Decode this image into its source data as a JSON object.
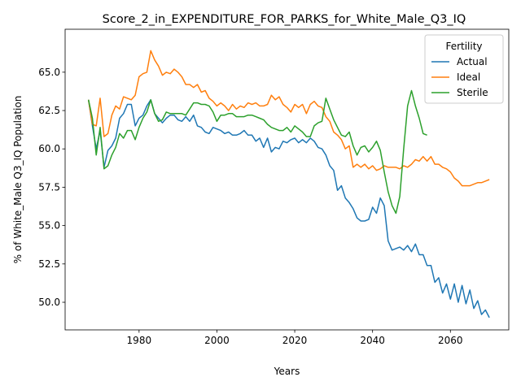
{
  "chart_data": {
    "type": "line",
    "title": "Score_2_in_EXPENDITURE_FOR_PARKS_for_White_Male_Q3_IQ",
    "xlabel": "Years",
    "ylabel": "% of White_Male Q3_IQ Population",
    "xlim": [
      1961,
      2075
    ],
    "ylim": [
      48.2,
      67.8
    ],
    "xticks": [
      1980,
      2000,
      2020,
      2040,
      2060
    ],
    "xtick_labels": [
      "1980",
      "2000",
      "2020",
      "2040",
      "2060"
    ],
    "yticks": [
      50.0,
      52.5,
      55.0,
      57.5,
      60.0,
      62.5,
      65.0
    ],
    "ytick_labels": [
      "50.0",
      "52.5",
      "55.0",
      "57.5",
      "60.0",
      "62.5",
      "65.0"
    ],
    "grid": false,
    "legend": {
      "title": "Fertility",
      "position": "top-right"
    },
    "series": [
      {
        "name": "Actual",
        "color": "#1f77b4",
        "x": [
          1967,
          1968,
          1969,
          1970,
          1971,
          1972,
          1973,
          1974,
          1975,
          1976,
          1977,
          1978,
          1979,
          1980,
          1981,
          1982,
          1983,
          1984,
          1985,
          1986,
          1987,
          1988,
          1989,
          1990,
          1991,
          1992,
          1993,
          1994,
          1995,
          1996,
          1997,
          1998,
          1999,
          2000,
          2001,
          2002,
          2003,
          2004,
          2005,
          2006,
          2007,
          2008,
          2009,
          2010,
          2011,
          2012,
          2013,
          2014,
          2015,
          2016,
          2017,
          2018,
          2019,
          2020,
          2021,
          2022,
          2023,
          2024,
          2025,
          2026,
          2027,
          2028,
          2029,
          2030,
          2031,
          2032,
          2033,
          2034,
          2035,
          2036,
          2037,
          2038,
          2039,
          2040,
          2041,
          2042,
          2043,
          2044,
          2045,
          2046,
          2047,
          2048,
          2049,
          2050,
          2051,
          2052,
          2053,
          2054,
          2055,
          2056,
          2057,
          2058,
          2059,
          2060,
          2061,
          2062,
          2063,
          2064,
          2065,
          2066,
          2067,
          2068,
          2069,
          2070
        ],
        "y": [
          63.2,
          61.5,
          60.0,
          61.2,
          58.8,
          59.9,
          60.2,
          60.7,
          62.0,
          62.3,
          62.9,
          62.9,
          61.5,
          62.0,
          62.2,
          62.8,
          63.2,
          62.3,
          62.0,
          61.7,
          62.0,
          62.2,
          62.2,
          61.9,
          61.8,
          62.1,
          61.8,
          62.2,
          61.5,
          61.4,
          61.1,
          61.0,
          61.4,
          61.3,
          61.2,
          61.0,
          61.1,
          60.9,
          60.9,
          61.0,
          61.2,
          60.9,
          60.9,
          60.5,
          60.7,
          60.1,
          60.7,
          59.8,
          60.1,
          60.0,
          60.5,
          60.4,
          60.6,
          60.7,
          60.4,
          60.6,
          60.4,
          60.7,
          60.5,
          60.1,
          60.0,
          59.6,
          58.9,
          58.6,
          57.3,
          57.6,
          56.8,
          56.5,
          56.1,
          55.5,
          55.3,
          55.3,
          55.4,
          56.2,
          55.8,
          56.8,
          56.3,
          54.0,
          53.4,
          53.5,
          53.6,
          53.4,
          53.7,
          53.3,
          53.8,
          53.1,
          53.1,
          52.4,
          52.4,
          51.3,
          51.6,
          50.6,
          51.2,
          50.2,
          51.2,
          50.0,
          51.1,
          49.9,
          50.8,
          49.6,
          50.1,
          49.2,
          49.5,
          49.0
        ]
      },
      {
        "name": "Ideal",
        "color": "#ff7f0e",
        "x": [
          1967,
          1968,
          1969,
          1970,
          1971,
          1972,
          1973,
          1974,
          1975,
          1976,
          1977,
          1978,
          1979,
          1980,
          1981,
          1982,
          1983,
          1984,
          1985,
          1986,
          1987,
          1988,
          1989,
          1990,
          1991,
          1992,
          1993,
          1994,
          1995,
          1996,
          1997,
          1998,
          1999,
          2000,
          2001,
          2002,
          2003,
          2004,
          2005,
          2006,
          2007,
          2008,
          2009,
          2010,
          2011,
          2012,
          2013,
          2014,
          2015,
          2016,
          2017,
          2018,
          2019,
          2020,
          2021,
          2022,
          2023,
          2024,
          2025,
          2026,
          2027,
          2028,
          2029,
          2030,
          2031,
          2032,
          2033,
          2034,
          2035,
          2036,
          2037,
          2038,
          2039,
          2040,
          2041,
          2042,
          2043,
          2044,
          2045,
          2046,
          2047,
          2048,
          2049,
          2050,
          2051,
          2052,
          2053,
          2054,
          2055,
          2056,
          2057,
          2058,
          2059,
          2060,
          2061,
          2062,
          2063,
          2064,
          2065,
          2066,
          2067,
          2068,
          2069,
          2070
        ],
        "y": [
          63.2,
          61.6,
          61.5,
          63.3,
          60.8,
          61.0,
          62.2,
          62.8,
          62.6,
          63.4,
          63.3,
          63.2,
          63.5,
          64.7,
          64.9,
          65.0,
          66.4,
          65.8,
          65.4,
          64.8,
          65.0,
          64.9,
          65.2,
          65.0,
          64.7,
          64.2,
          64.2,
          64.0,
          64.2,
          63.7,
          63.8,
          63.3,
          63.1,
          62.8,
          63.0,
          62.8,
          62.5,
          62.9,
          62.6,
          62.8,
          62.7,
          63.0,
          62.9,
          63.0,
          62.8,
          62.8,
          62.9,
          63.5,
          63.2,
          63.4,
          62.9,
          62.7,
          62.4,
          62.9,
          62.7,
          62.9,
          62.3,
          62.9,
          63.1,
          62.8,
          62.7,
          62.1,
          61.8,
          61.1,
          60.9,
          60.6,
          60.0,
          60.2,
          58.8,
          59.0,
          58.8,
          59.0,
          58.7,
          58.9,
          58.6,
          58.7,
          58.9,
          58.8,
          58.8,
          58.8,
          58.7,
          58.9,
          58.8,
          59.0,
          59.3,
          59.2,
          59.5,
          59.2,
          59.5,
          59.0,
          59.0,
          58.8,
          58.7,
          58.5,
          58.1,
          57.9,
          57.6,
          57.6,
          57.6,
          57.7,
          57.8,
          57.8,
          57.9,
          58.0
        ]
      },
      {
        "name": "Sterile",
        "color": "#2ca02c",
        "x": [
          1967,
          1968,
          1969,
          1970,
          1971,
          1972,
          1973,
          1974,
          1975,
          1976,
          1977,
          1978,
          1979,
          1980,
          1981,
          1982,
          1983,
          1984,
          1985,
          1986,
          1987,
          1988,
          1989,
          1990,
          1991,
          1992,
          1993,
          1994,
          1995,
          1996,
          1997,
          1998,
          1999,
          2000,
          2001,
          2002,
          2003,
          2004,
          2005,
          2006,
          2007,
          2008,
          2009,
          2010,
          2011,
          2012,
          2013,
          2014,
          2015,
          2016,
          2017,
          2018,
          2019,
          2020,
          2021,
          2022,
          2023,
          2024,
          2025,
          2026,
          2027,
          2028,
          2029,
          2030,
          2031,
          2032,
          2033,
          2034,
          2035,
          2036,
          2037,
          2038,
          2039,
          2040,
          2041,
          2042,
          2043,
          2044,
          2045,
          2046,
          2047,
          2048,
          2049,
          2050,
          2051,
          2052,
          2053,
          2054
        ],
        "y": [
          63.2,
          62.0,
          59.6,
          61.4,
          58.7,
          58.9,
          59.6,
          60.1,
          61.0,
          60.7,
          61.2,
          61.2,
          60.6,
          61.4,
          62.0,
          62.4,
          63.2,
          62.3,
          61.8,
          61.9,
          62.4,
          62.3,
          62.3,
          62.3,
          62.3,
          62.2,
          62.6,
          63.0,
          63.0,
          62.9,
          62.9,
          62.8,
          62.4,
          61.8,
          62.2,
          62.2,
          62.3,
          62.3,
          62.1,
          62.1,
          62.1,
          62.2,
          62.2,
          62.1,
          62.0,
          61.9,
          61.6,
          61.4,
          61.3,
          61.2,
          61.2,
          61.4,
          61.1,
          61.5,
          61.3,
          61.1,
          60.8,
          60.8,
          61.5,
          61.7,
          61.8,
          63.3,
          62.6,
          61.9,
          61.4,
          60.9,
          60.8,
          61.1,
          60.2,
          59.6,
          60.1,
          60.2,
          59.8,
          60.1,
          60.5,
          59.9,
          58.5,
          57.2,
          56.3,
          55.8,
          56.9,
          60.0,
          62.8,
          63.8,
          62.8,
          62.0,
          61.0,
          60.9
        ]
      }
    ]
  }
}
